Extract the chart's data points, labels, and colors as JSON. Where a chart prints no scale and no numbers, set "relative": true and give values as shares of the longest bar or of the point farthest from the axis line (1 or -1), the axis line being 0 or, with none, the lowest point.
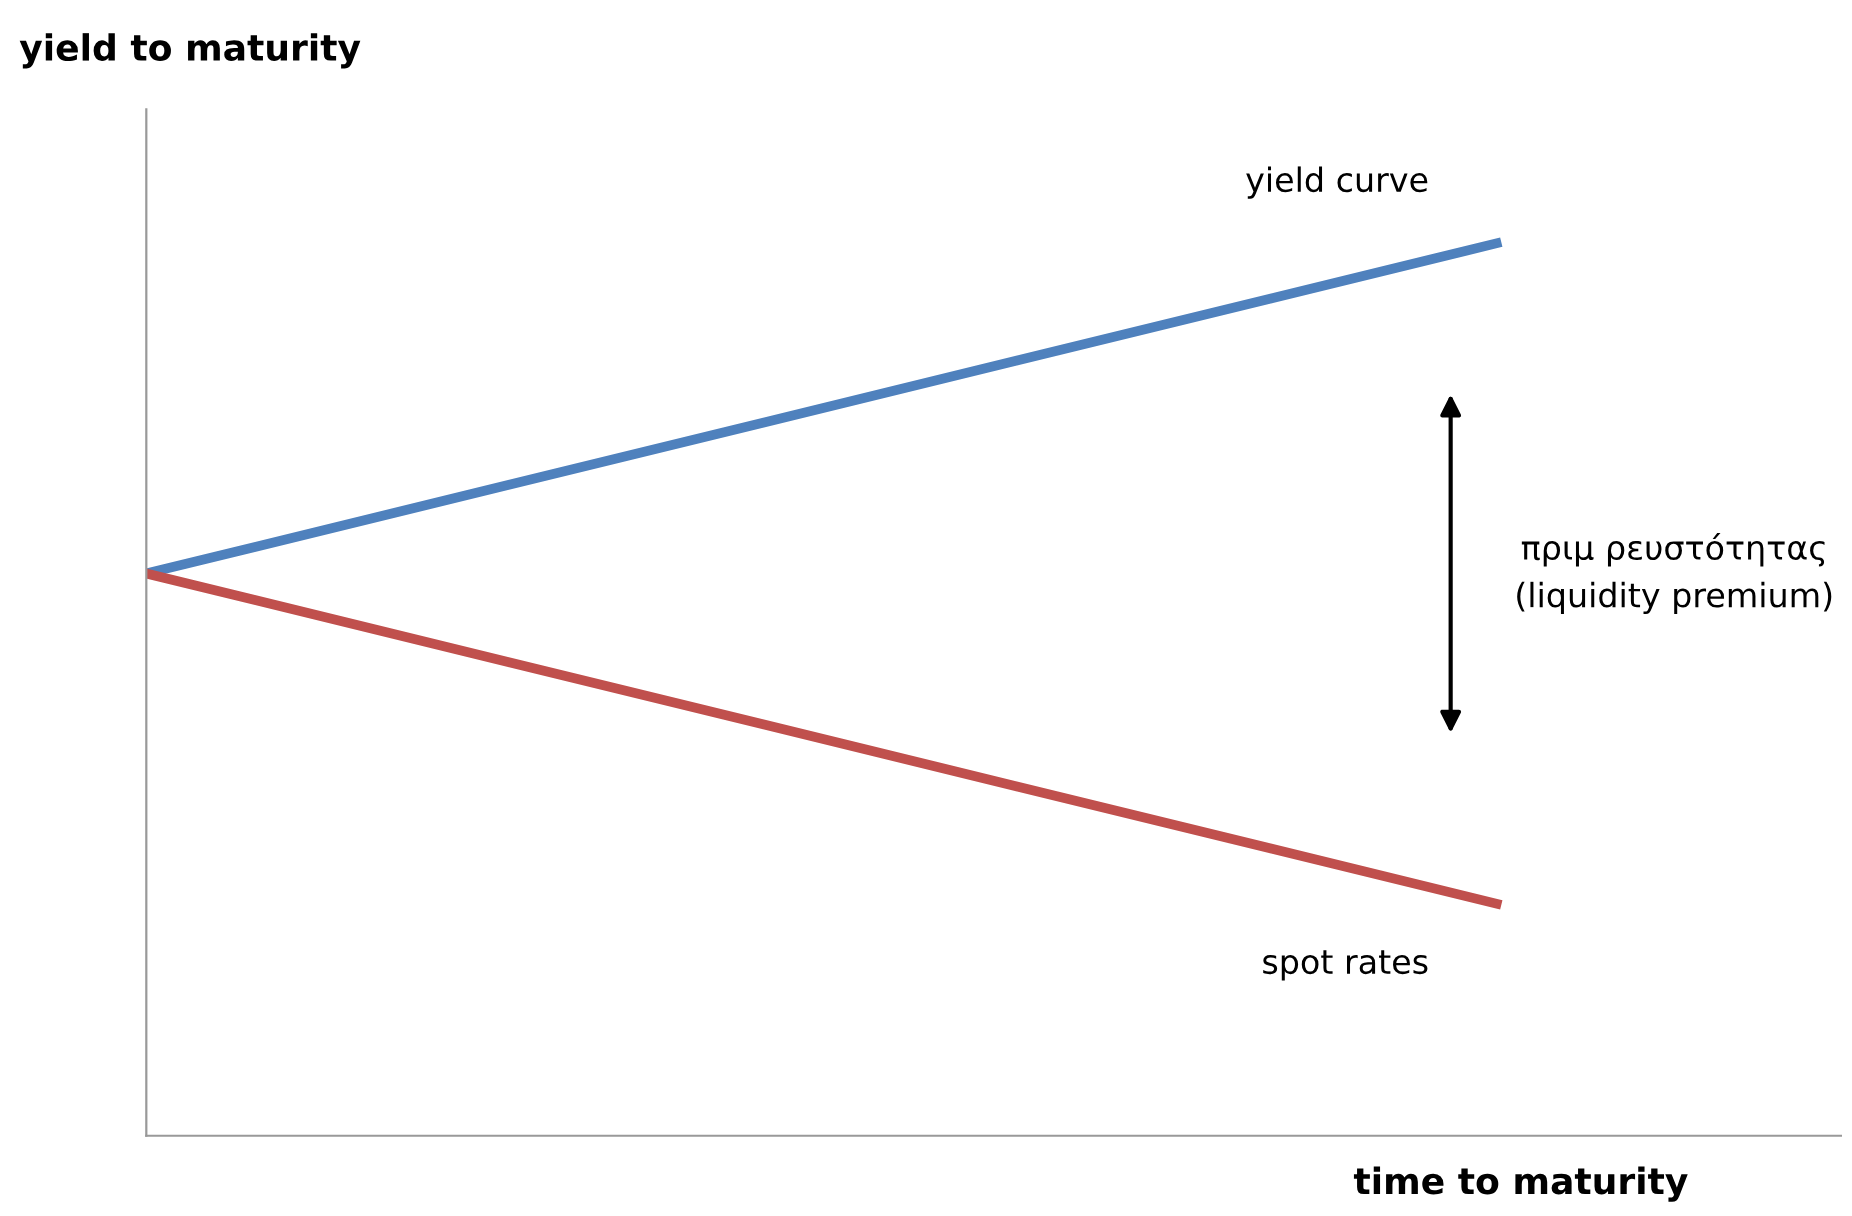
{
  "chart_data": {
    "type": "line",
    "relative": true,
    "xlabel": "time to maturity",
    "ylabel": "yield to maturity",
    "categories": [
      null,
      null
    ],
    "series": [
      {
        "name": "yield curve",
        "color": "#4f81bd",
        "values": [
          0.63,
          1
        ]
      },
      {
        "name": "spot rates",
        "color": "#c0504d",
        "values": [
          0.63,
          0.26
        ]
      }
    ],
    "annotations": [
      "πριμ ρευστότητας\n(liquidity premium)"
    ],
    "legend": false,
    "grid": false,
    "marker": "none",
    "line_style": "solid"
  }
}
